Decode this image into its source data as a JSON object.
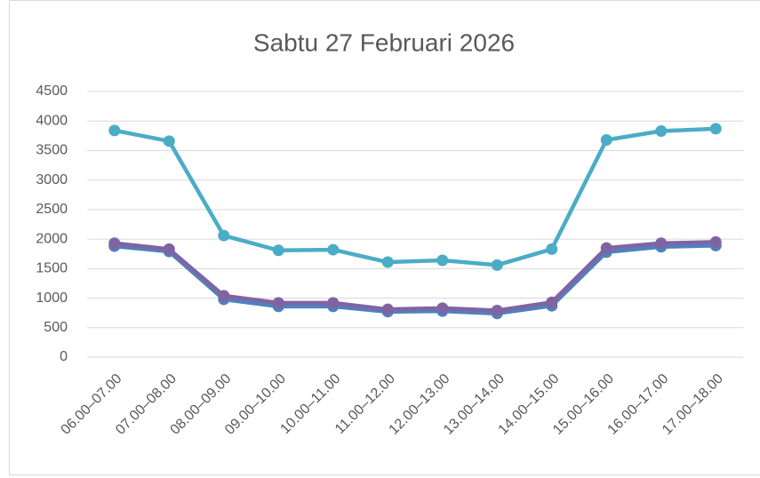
{
  "chart_data": {
    "type": "line",
    "title": "Sabtu 27 Februari 2026",
    "categories": [
      "06.00–07.00",
      "07.00–08.00",
      "08.00–09.00",
      "09.00–10.00",
      "10.00–11.00",
      "11.00–12.00",
      "12.00–13.00",
      "13.00–14.00",
      "14.00–15.00",
      "15.00–16.00",
      "16.00–17.00",
      "17.00–18.00"
    ],
    "series": [
      {
        "color": "#4bacc6",
        "values": [
          3840,
          3660,
          2060,
          1810,
          1820,
          1610,
          1640,
          1560,
          1830,
          3680,
          3830,
          3870
        ]
      },
      {
        "color": "#4f81bd",
        "values": [
          1880,
          1790,
          980,
          860,
          860,
          770,
          780,
          740,
          870,
          1780,
          1870,
          1890
        ]
      },
      {
        "color": "#8064a2",
        "values": [
          1930,
          1830,
          1040,
          920,
          920,
          810,
          830,
          790,
          930,
          1850,
          1930,
          1950
        ]
      }
    ],
    "ylim": [
      0,
      4500
    ],
    "yticks": [
      0,
      500,
      1000,
      1500,
      2000,
      2500,
      3000,
      3500,
      4000,
      4500
    ],
    "grid": true
  }
}
